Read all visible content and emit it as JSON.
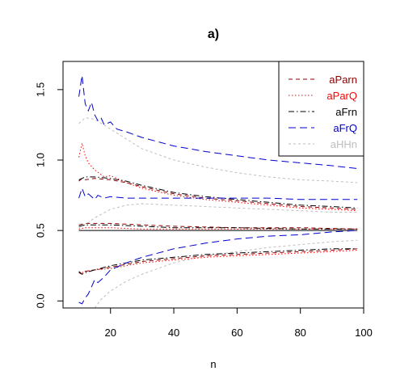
{
  "chart_data": {
    "type": "line",
    "title": "a)",
    "xlabel": "n",
    "ylabel": "",
    "xlim": [
      5,
      100
    ],
    "ylim": [
      -0.05,
      1.7
    ],
    "x_ticks": [
      20,
      40,
      60,
      80,
      100
    ],
    "y_ticks": [
      0.0,
      0.5,
      1.0,
      1.5
    ],
    "x_tick_labels": [
      "20",
      "40",
      "60",
      "80",
      "100"
    ],
    "y_tick_labels": [
      "0.0",
      "0.5",
      "1.0",
      "1.5"
    ],
    "reference_line": 0.5,
    "legend_position": "top-right",
    "legend": [
      {
        "name": "aParn",
        "color": "#8B0000",
        "dash": "5,4"
      },
      {
        "name": "aParQ",
        "color": "#FF0000",
        "dash": "1.5,2.5"
      },
      {
        "name": "aFrn",
        "color": "#000000",
        "dash": "7,3,1.5,3"
      },
      {
        "name": "aFrQ",
        "color": "#0000CD",
        "dash": "9,5"
      },
      {
        "name": "aHHn",
        "color": "#BEBEBE",
        "dash": "3,3"
      }
    ],
    "series": [
      {
        "name": "aParn",
        "group": "upper",
        "x": [
          10,
          11,
          12,
          15,
          20,
          25,
          30,
          40,
          50,
          60,
          70,
          80,
          90,
          98
        ],
        "y": [
          0.85,
          0.87,
          0.86,
          0.87,
          0.86,
          0.84,
          0.81,
          0.76,
          0.73,
          0.71,
          0.69,
          0.67,
          0.66,
          0.65
        ]
      },
      {
        "name": "aParn",
        "group": "middle",
        "x": [
          10,
          12,
          15,
          20,
          30,
          40,
          60,
          80,
          98
        ],
        "y": [
          0.54,
          0.55,
          0.55,
          0.55,
          0.54,
          0.53,
          0.52,
          0.52,
          0.51
        ]
      },
      {
        "name": "aParn",
        "group": "lower",
        "x": [
          10,
          11,
          12,
          15,
          20,
          25,
          30,
          40,
          50,
          60,
          70,
          80,
          90,
          98
        ],
        "y": [
          0.2,
          0.19,
          0.21,
          0.22,
          0.24,
          0.26,
          0.28,
          0.3,
          0.32,
          0.33,
          0.34,
          0.35,
          0.36,
          0.37
        ]
      },
      {
        "name": "aParQ",
        "group": "upper",
        "x": [
          10,
          11,
          12,
          13,
          15,
          18,
          20,
          25,
          30,
          40,
          50,
          60,
          70,
          80,
          90,
          98
        ],
        "y": [
          1.02,
          1.12,
          1.03,
          0.98,
          0.93,
          0.88,
          0.89,
          0.84,
          0.8,
          0.75,
          0.72,
          0.7,
          0.68,
          0.66,
          0.65,
          0.64
        ]
      },
      {
        "name": "aParQ",
        "group": "middle",
        "x": [
          10,
          12,
          15,
          20,
          30,
          40,
          60,
          80,
          98
        ],
        "y": [
          0.51,
          0.52,
          0.52,
          0.52,
          0.51,
          0.51,
          0.51,
          0.51,
          0.51
        ]
      },
      {
        "name": "aParQ",
        "group": "lower",
        "x": [
          10,
          11,
          12,
          15,
          20,
          25,
          30,
          40,
          50,
          60,
          70,
          80,
          90,
          98
        ],
        "y": [
          0.2,
          0.2,
          0.21,
          0.22,
          0.23,
          0.25,
          0.27,
          0.29,
          0.31,
          0.32,
          0.33,
          0.34,
          0.35,
          0.36
        ]
      },
      {
        "name": "aFrn",
        "group": "upper",
        "x": [
          10,
          11,
          12,
          15,
          20,
          25,
          30,
          40,
          50,
          60,
          70,
          80,
          90,
          98
        ],
        "y": [
          0.86,
          0.87,
          0.88,
          0.88,
          0.87,
          0.85,
          0.82,
          0.77,
          0.74,
          0.72,
          0.7,
          0.68,
          0.67,
          0.66
        ]
      },
      {
        "name": "aFrn",
        "group": "middle",
        "x": [
          10,
          12,
          15,
          20,
          30,
          40,
          60,
          80,
          98
        ],
        "y": [
          0.53,
          0.54,
          0.54,
          0.54,
          0.53,
          0.52,
          0.52,
          0.51,
          0.51
        ]
      },
      {
        "name": "aFrn",
        "group": "lower",
        "x": [
          10,
          11,
          12,
          15,
          20,
          25,
          30,
          40,
          50,
          60,
          70,
          80,
          90,
          98
        ],
        "y": [
          0.21,
          0.19,
          0.2,
          0.22,
          0.25,
          0.27,
          0.29,
          0.31,
          0.33,
          0.34,
          0.35,
          0.36,
          0.37,
          0.37
        ]
      },
      {
        "name": "aFrQ",
        "group": "upper",
        "x": [
          10,
          11,
          12,
          13,
          14,
          15,
          16,
          17,
          18,
          20,
          22,
          25,
          30,
          40,
          50,
          60,
          70,
          80,
          90,
          98
        ],
        "y": [
          1.45,
          1.6,
          1.4,
          1.35,
          1.41,
          1.32,
          1.28,
          1.3,
          1.25,
          1.27,
          1.22,
          1.2,
          1.16,
          1.1,
          1.06,
          1.03,
          1.0,
          0.98,
          0.96,
          0.94
        ]
      },
      {
        "name": "aFrQ",
        "group": "middle",
        "x": [
          10,
          11,
          12,
          13,
          14,
          15,
          16,
          18,
          20,
          25,
          30,
          40,
          50,
          60,
          70,
          80,
          90,
          98
        ],
        "y": [
          0.73,
          0.8,
          0.74,
          0.76,
          0.74,
          0.72,
          0.75,
          0.73,
          0.74,
          0.73,
          0.73,
          0.73,
          0.73,
          0.73,
          0.73,
          0.72,
          0.72,
          0.72
        ]
      },
      {
        "name": "aFrQ",
        "group": "lower",
        "x": [
          10,
          11,
          12,
          13,
          14,
          15,
          16,
          18,
          20,
          25,
          30,
          40,
          50,
          60,
          70,
          80,
          90,
          98
        ],
        "y": [
          -0.01,
          -0.02,
          0.02,
          0.05,
          0.1,
          0.15,
          0.13,
          0.17,
          0.22,
          0.27,
          0.31,
          0.37,
          0.41,
          0.44,
          0.46,
          0.47,
          0.49,
          0.5
        ]
      },
      {
        "name": "aHHn",
        "group": "upper",
        "x": [
          10,
          12,
          15,
          20,
          25,
          30,
          40,
          50,
          60,
          70,
          80,
          90,
          98
        ],
        "y": [
          1.26,
          1.3,
          1.29,
          1.22,
          1.15,
          1.08,
          1.0,
          0.95,
          0.91,
          0.88,
          0.86,
          0.85,
          0.84
        ]
      },
      {
        "name": "aHHn",
        "group": "middle",
        "x": [
          10,
          12,
          15,
          20,
          25,
          30,
          40,
          50,
          60,
          70,
          80,
          90,
          98
        ],
        "y": [
          0.52,
          0.54,
          0.59,
          0.65,
          0.68,
          0.69,
          0.68,
          0.67,
          0.66,
          0.65,
          0.64,
          0.63,
          0.63
        ]
      },
      {
        "name": "aHHn",
        "group": "lower",
        "x": [
          15,
          17,
          20,
          25,
          30,
          40,
          50,
          60,
          70,
          80,
          90,
          98
        ],
        "y": [
          -0.05,
          0.01,
          0.07,
          0.14,
          0.19,
          0.27,
          0.32,
          0.35,
          0.38,
          0.4,
          0.42,
          0.43
        ]
      }
    ]
  }
}
